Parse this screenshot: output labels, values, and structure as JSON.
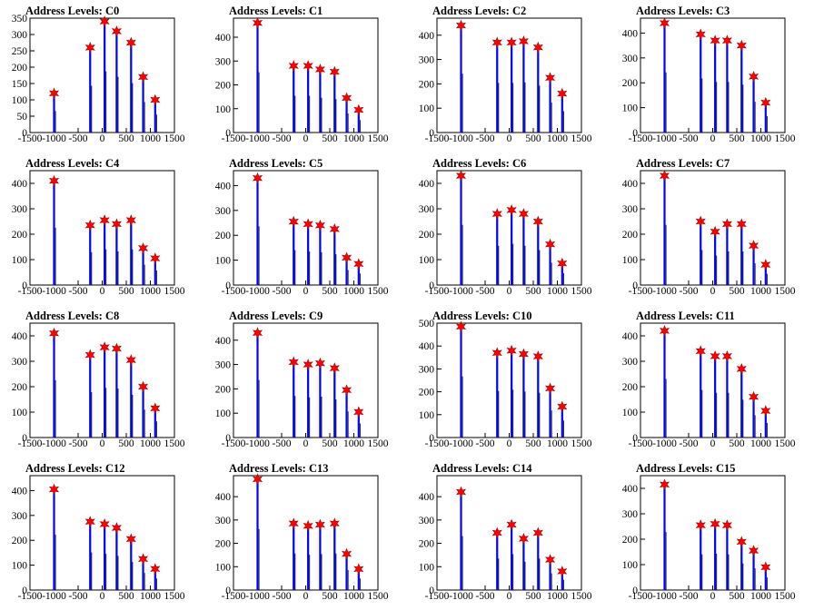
{
  "chart_data": [
    {
      "type": "bar",
      "title": "Address Levels: C0",
      "xlim": [
        -1500,
        1500
      ],
      "ylim": [
        0,
        350
      ],
      "yticks": [
        0,
        50,
        100,
        150,
        200,
        250,
        300,
        350
      ],
      "xticks": [
        -1500,
        -1000,
        -500,
        0,
        500,
        1000,
        1500
      ],
      "x": [
        -1000,
        -250,
        50,
        300,
        600,
        850,
        1100
      ],
      "values": [
        120,
        260,
        340,
        310,
        275,
        170,
        100
      ],
      "color": "#0000ff",
      "marker_color": "#ff0000"
    },
    {
      "type": "bar",
      "title": "Address Levels: C1",
      "xlim": [
        -1500,
        1500
      ],
      "ylim": [
        0,
        480
      ],
      "yticks": [
        0,
        100,
        200,
        300,
        400
      ],
      "xticks": [
        -1500,
        -1000,
        -500,
        0,
        500,
        1000,
        1500
      ],
      "x": [
        -1000,
        -250,
        50,
        300,
        600,
        850,
        1100
      ],
      "values": [
        460,
        280,
        280,
        265,
        255,
        145,
        95
      ],
      "color": "#0000ff",
      "marker_color": "#ff0000"
    },
    {
      "type": "bar",
      "title": "Address Levels: C2",
      "xlim": [
        -1500,
        1500
      ],
      "ylim": [
        0,
        470
      ],
      "yticks": [
        0,
        100,
        200,
        300,
        400
      ],
      "xticks": [
        -1500,
        -1000,
        -500,
        0,
        500,
        1000,
        1500
      ],
      "x": [
        -1000,
        -250,
        50,
        300,
        600,
        850,
        1100
      ],
      "values": [
        440,
        370,
        370,
        375,
        350,
        225,
        160
      ],
      "color": "#0000ff",
      "marker_color": "#ff0000"
    },
    {
      "type": "bar",
      "title": "Address Levels: C3",
      "xlim": [
        -1500,
        1500
      ],
      "ylim": [
        0,
        460
      ],
      "yticks": [
        0,
        100,
        200,
        300,
        400
      ],
      "xticks": [
        -1500,
        -1000,
        -500,
        0,
        500,
        1000,
        1500
      ],
      "x": [
        -1000,
        -250,
        50,
        300,
        600,
        850,
        1100
      ],
      "values": [
        440,
        395,
        370,
        370,
        350,
        225,
        120
      ],
      "color": "#0000ff",
      "marker_color": "#ff0000"
    },
    {
      "type": "bar",
      "title": "Address Levels: C4",
      "xlim": [
        -1500,
        1500
      ],
      "ylim": [
        0,
        450
      ],
      "yticks": [
        0,
        100,
        200,
        300,
        400
      ],
      "xticks": [
        -1500,
        -1000,
        -500,
        0,
        500,
        1000,
        1500
      ],
      "x": [
        -1000,
        -250,
        50,
        300,
        600,
        850,
        1100
      ],
      "values": [
        410,
        235,
        255,
        240,
        255,
        145,
        105
      ],
      "color": "#0000ff",
      "marker_color": "#ff0000"
    },
    {
      "type": "bar",
      "title": "Address Levels: C5",
      "xlim": [
        -1500,
        1500
      ],
      "ylim": [
        0,
        460
      ],
      "yticks": [
        0,
        100,
        200,
        300,
        400
      ],
      "xticks": [
        -1500,
        -1000,
        -500,
        0,
        500,
        1000,
        1500
      ],
      "x": [
        -1000,
        -250,
        50,
        300,
        600,
        850,
        1100
      ],
      "values": [
        430,
        255,
        245,
        240,
        225,
        110,
        85
      ],
      "color": "#0000ff",
      "marker_color": "#ff0000"
    },
    {
      "type": "bar",
      "title": "Address Levels: C6",
      "xlim": [
        -1500,
        1500
      ],
      "ylim": [
        0,
        450
      ],
      "yticks": [
        0,
        100,
        200,
        300,
        400
      ],
      "xticks": [
        -1500,
        -1000,
        -500,
        0,
        500,
        1000,
        1500
      ],
      "x": [
        -1000,
        -250,
        50,
        300,
        600,
        850,
        1100
      ],
      "values": [
        430,
        280,
        295,
        280,
        250,
        160,
        85
      ],
      "color": "#0000ff",
      "marker_color": "#ff0000"
    },
    {
      "type": "bar",
      "title": "Address Levels: C7",
      "xlim": [
        -1500,
        1500
      ],
      "ylim": [
        0,
        450
      ],
      "yticks": [
        0,
        100,
        200,
        300,
        400
      ],
      "xticks": [
        -1500,
        -1000,
        -500,
        0,
        500,
        1000,
        1500
      ],
      "x": [
        -1000,
        -250,
        50,
        300,
        600,
        850,
        1100
      ],
      "values": [
        430,
        250,
        210,
        240,
        240,
        155,
        80
      ],
      "color": "#0000ff",
      "marker_color": "#ff0000"
    },
    {
      "type": "bar",
      "title": "Address Levels: C8",
      "xlim": [
        -1500,
        1500
      ],
      "ylim": [
        0,
        450
      ],
      "yticks": [
        0,
        100,
        200,
        300,
        400
      ],
      "xticks": [
        -1500,
        -1000,
        -500,
        0,
        500,
        1000,
        1500
      ],
      "x": [
        -1000,
        -250,
        50,
        300,
        600,
        850,
        1100
      ],
      "values": [
        410,
        325,
        355,
        350,
        305,
        200,
        115
      ],
      "color": "#0000ff",
      "marker_color": "#ff0000"
    },
    {
      "type": "bar",
      "title": "Address Levels: C9",
      "xlim": [
        -1500,
        1500
      ],
      "ylim": [
        0,
        470
      ],
      "yticks": [
        0,
        100,
        200,
        300,
        400
      ],
      "xticks": [
        -1500,
        -1000,
        -500,
        0,
        500,
        1000,
        1500
      ],
      "x": [
        -1000,
        -250,
        50,
        300,
        600,
        850,
        1100
      ],
      "values": [
        430,
        310,
        300,
        305,
        285,
        195,
        105
      ],
      "color": "#0000ff",
      "marker_color": "#ff0000"
    },
    {
      "type": "bar",
      "title": "Address Levels: C10",
      "xlim": [
        -1500,
        1500
      ],
      "ylim": [
        0,
        500
      ],
      "yticks": [
        0,
        100,
        200,
        300,
        400,
        500
      ],
      "xticks": [
        -1500,
        -1000,
        -500,
        0,
        500,
        1000,
        1500
      ],
      "x": [
        -1000,
        -250,
        50,
        300,
        600,
        850,
        1100
      ],
      "values": [
        485,
        370,
        380,
        365,
        355,
        215,
        135
      ],
      "color": "#0000ff",
      "marker_color": "#ff0000"
    },
    {
      "type": "bar",
      "title": "Address Levels: C11",
      "xlim": [
        -1500,
        1500
      ],
      "ylim": [
        0,
        450
      ],
      "yticks": [
        0,
        100,
        200,
        300,
        400
      ],
      "xticks": [
        -1500,
        -1000,
        -500,
        0,
        500,
        1000,
        1500
      ],
      "x": [
        -1000,
        -250,
        50,
        300,
        600,
        850,
        1100
      ],
      "values": [
        420,
        340,
        320,
        320,
        270,
        160,
        105
      ],
      "color": "#0000ff",
      "marker_color": "#ff0000"
    },
    {
      "type": "bar",
      "title": "Address Levels: C12",
      "xlim": [
        -1500,
        1500
      ],
      "ylim": [
        0,
        460
      ],
      "yticks": [
        0,
        100,
        200,
        300,
        400
      ],
      "xticks": [
        -1500,
        -1000,
        -500,
        0,
        500,
        1000,
        1500
      ],
      "x": [
        -1000,
        -250,
        50,
        300,
        600,
        850,
        1100
      ],
      "values": [
        405,
        275,
        265,
        250,
        205,
        125,
        85
      ],
      "color": "#0000ff",
      "marker_color": "#ff0000"
    },
    {
      "type": "bar",
      "title": "Address Levels: C13",
      "xlim": [
        -1500,
        1500
      ],
      "ylim": [
        0,
        490
      ],
      "yticks": [
        0,
        100,
        200,
        300,
        400
      ],
      "xticks": [
        -1500,
        -1000,
        -500,
        0,
        500,
        1000,
        1500
      ],
      "x": [
        -1000,
        -250,
        50,
        300,
        600,
        850,
        1100
      ],
      "values": [
        475,
        285,
        275,
        280,
        285,
        155,
        90
      ],
      "color": "#0000ff",
      "marker_color": "#ff0000"
    },
    {
      "type": "bar",
      "title": "Address Levels: C14",
      "xlim": [
        -1500,
        1500
      ],
      "ylim": [
        0,
        490
      ],
      "yticks": [
        0,
        100,
        200,
        300,
        400
      ],
      "xticks": [
        -1500,
        -1000,
        -500,
        0,
        500,
        1000,
        1500
      ],
      "x": [
        -1000,
        -250,
        50,
        300,
        600,
        850,
        1100
      ],
      "values": [
        420,
        245,
        280,
        220,
        245,
        130,
        80
      ],
      "color": "#0000ff",
      "marker_color": "#ff0000"
    },
    {
      "type": "bar",
      "title": "Address Levels: C15",
      "xlim": [
        -1500,
        1500
      ],
      "ylim": [
        0,
        450
      ],
      "yticks": [
        0,
        100,
        200,
        300,
        400
      ],
      "xticks": [
        -1500,
        -1000,
        -500,
        0,
        500,
        1000,
        1500
      ],
      "x": [
        -1000,
        -250,
        50,
        300,
        600,
        850,
        1100
      ],
      "values": [
        415,
        255,
        260,
        255,
        190,
        155,
        90
      ],
      "color": "#0000ff",
      "marker_color": "#ff0000"
    }
  ]
}
